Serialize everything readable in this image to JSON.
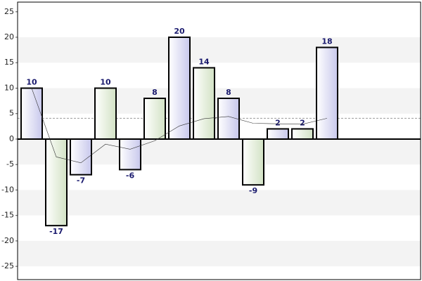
{
  "chart_data": {
    "type": "bar",
    "values": [
      10,
      -17,
      -7,
      10,
      -6,
      8,
      20,
      14,
      8,
      -9,
      2,
      2,
      18
    ],
    "colors": [
      "#d6d6f0",
      "#dde9d2"
    ],
    "running_mean": [
      10,
      -3.5,
      -4.67,
      -1,
      -2,
      -0.33,
      2.57,
      4,
      4.44,
      3.1,
      3,
      2.92,
      4.08
    ],
    "average": 4.08,
    "ylim": [
      -27.6,
      26.9
    ],
    "yticks": [
      -25,
      -20,
      -15,
      -10,
      -5,
      0,
      5,
      10,
      15,
      20,
      25
    ],
    "grid": true
  }
}
